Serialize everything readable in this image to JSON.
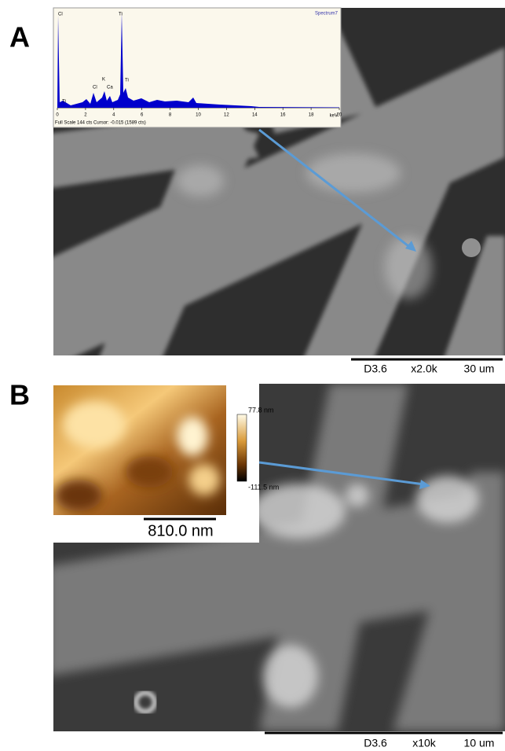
{
  "panels": [
    {
      "label": "A",
      "spectrum": {
        "title": "Spectrum7",
        "peak_labels": [
          "Cl",
          "Ti",
          "Ti",
          "Cl",
          "K",
          "Ca",
          "Ti"
        ],
        "x_ticks": [
          0,
          2,
          4,
          6,
          8,
          10,
          12,
          14,
          16,
          18,
          20
        ],
        "x_unit": "keV",
        "footer": "Full Scale 144 cts Cursor: -0.015 (1589 cts)"
      },
      "scale_bar": [
        "D3.6",
        "x2.0k",
        "30 um"
      ]
    },
    {
      "label": "B",
      "afm": {
        "max": "77.8 nm",
        "min": "-111.5 nm",
        "scale": "810.0 nm"
      },
      "scale_bar": [
        "D3.6",
        "x10k",
        "10 um"
      ]
    }
  ]
}
